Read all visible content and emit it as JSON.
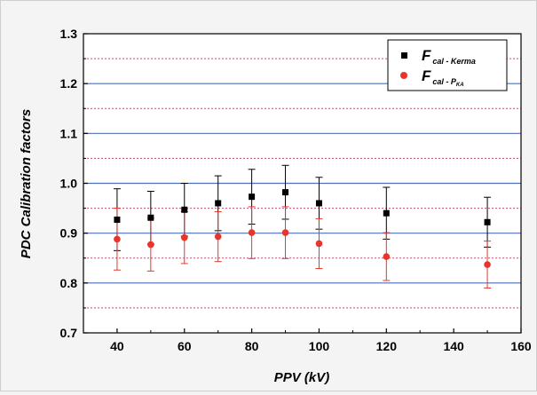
{
  "chart_data": {
    "type": "scatter",
    "xlabel": "PPV (kV)",
    "ylabel": "PDC Calibration factors",
    "xlim": [
      30,
      160
    ],
    "ylim": [
      0.7,
      1.3
    ],
    "x_ticks": [
      "40",
      "60",
      "80",
      "100",
      "120",
      "140",
      "160"
    ],
    "y_ticks": [
      "0.7",
      "0.8",
      "0.9",
      "1.0",
      "1.1",
      "1.2",
      "1.3"
    ],
    "grid": {
      "major_y": [
        0.8,
        0.9,
        1.0,
        1.1,
        1.2
      ],
      "minor_y": [
        0.75,
        0.85,
        0.95,
        1.05,
        1.15,
        1.25
      ]
    },
    "legend_position": "top-right",
    "series": [
      {
        "name_main": "F",
        "name_sub": "cal - Kerma",
        "marker": "square",
        "color": "#000000",
        "points": [
          {
            "x": 40,
            "y": 0.927,
            "err": 0.062
          },
          {
            "x": 50,
            "y": 0.931,
            "err": 0.053
          },
          {
            "x": 60,
            "y": 0.947,
            "err": 0.053
          },
          {
            "x": 70,
            "y": 0.96,
            "err": 0.055
          },
          {
            "x": 80,
            "y": 0.973,
            "err": 0.055
          },
          {
            "x": 90,
            "y": 0.982,
            "err": 0.054
          },
          {
            "x": 100,
            "y": 0.96,
            "err": 0.052
          },
          {
            "x": 120,
            "y": 0.94,
            "err": 0.052
          },
          {
            "x": 150,
            "y": 0.922,
            "err": 0.05
          }
        ]
      },
      {
        "name_main": "F",
        "name_sub": "cal - P",
        "name_subsub": "KA",
        "marker": "circle",
        "color": "#e8352c",
        "points": [
          {
            "x": 40,
            "y": 0.888,
            "err": 0.062
          },
          {
            "x": 50,
            "y": 0.877,
            "err": 0.053
          },
          {
            "x": 60,
            "y": 0.891,
            "err": 0.052
          },
          {
            "x": 70,
            "y": 0.893,
            "err": 0.05
          },
          {
            "x": 80,
            "y": 0.901,
            "err": 0.052
          },
          {
            "x": 90,
            "y": 0.901,
            "err": 0.052
          },
          {
            "x": 100,
            "y": 0.879,
            "err": 0.05
          },
          {
            "x": 120,
            "y": 0.853,
            "err": 0.048
          },
          {
            "x": 150,
            "y": 0.837,
            "err": 0.047
          }
        ]
      }
    ],
    "colors": {
      "major_grid": "#4f6fb8",
      "minor_grid": "#c0507a",
      "axis": "#000000",
      "plot_bg": "#ffffff"
    }
  }
}
